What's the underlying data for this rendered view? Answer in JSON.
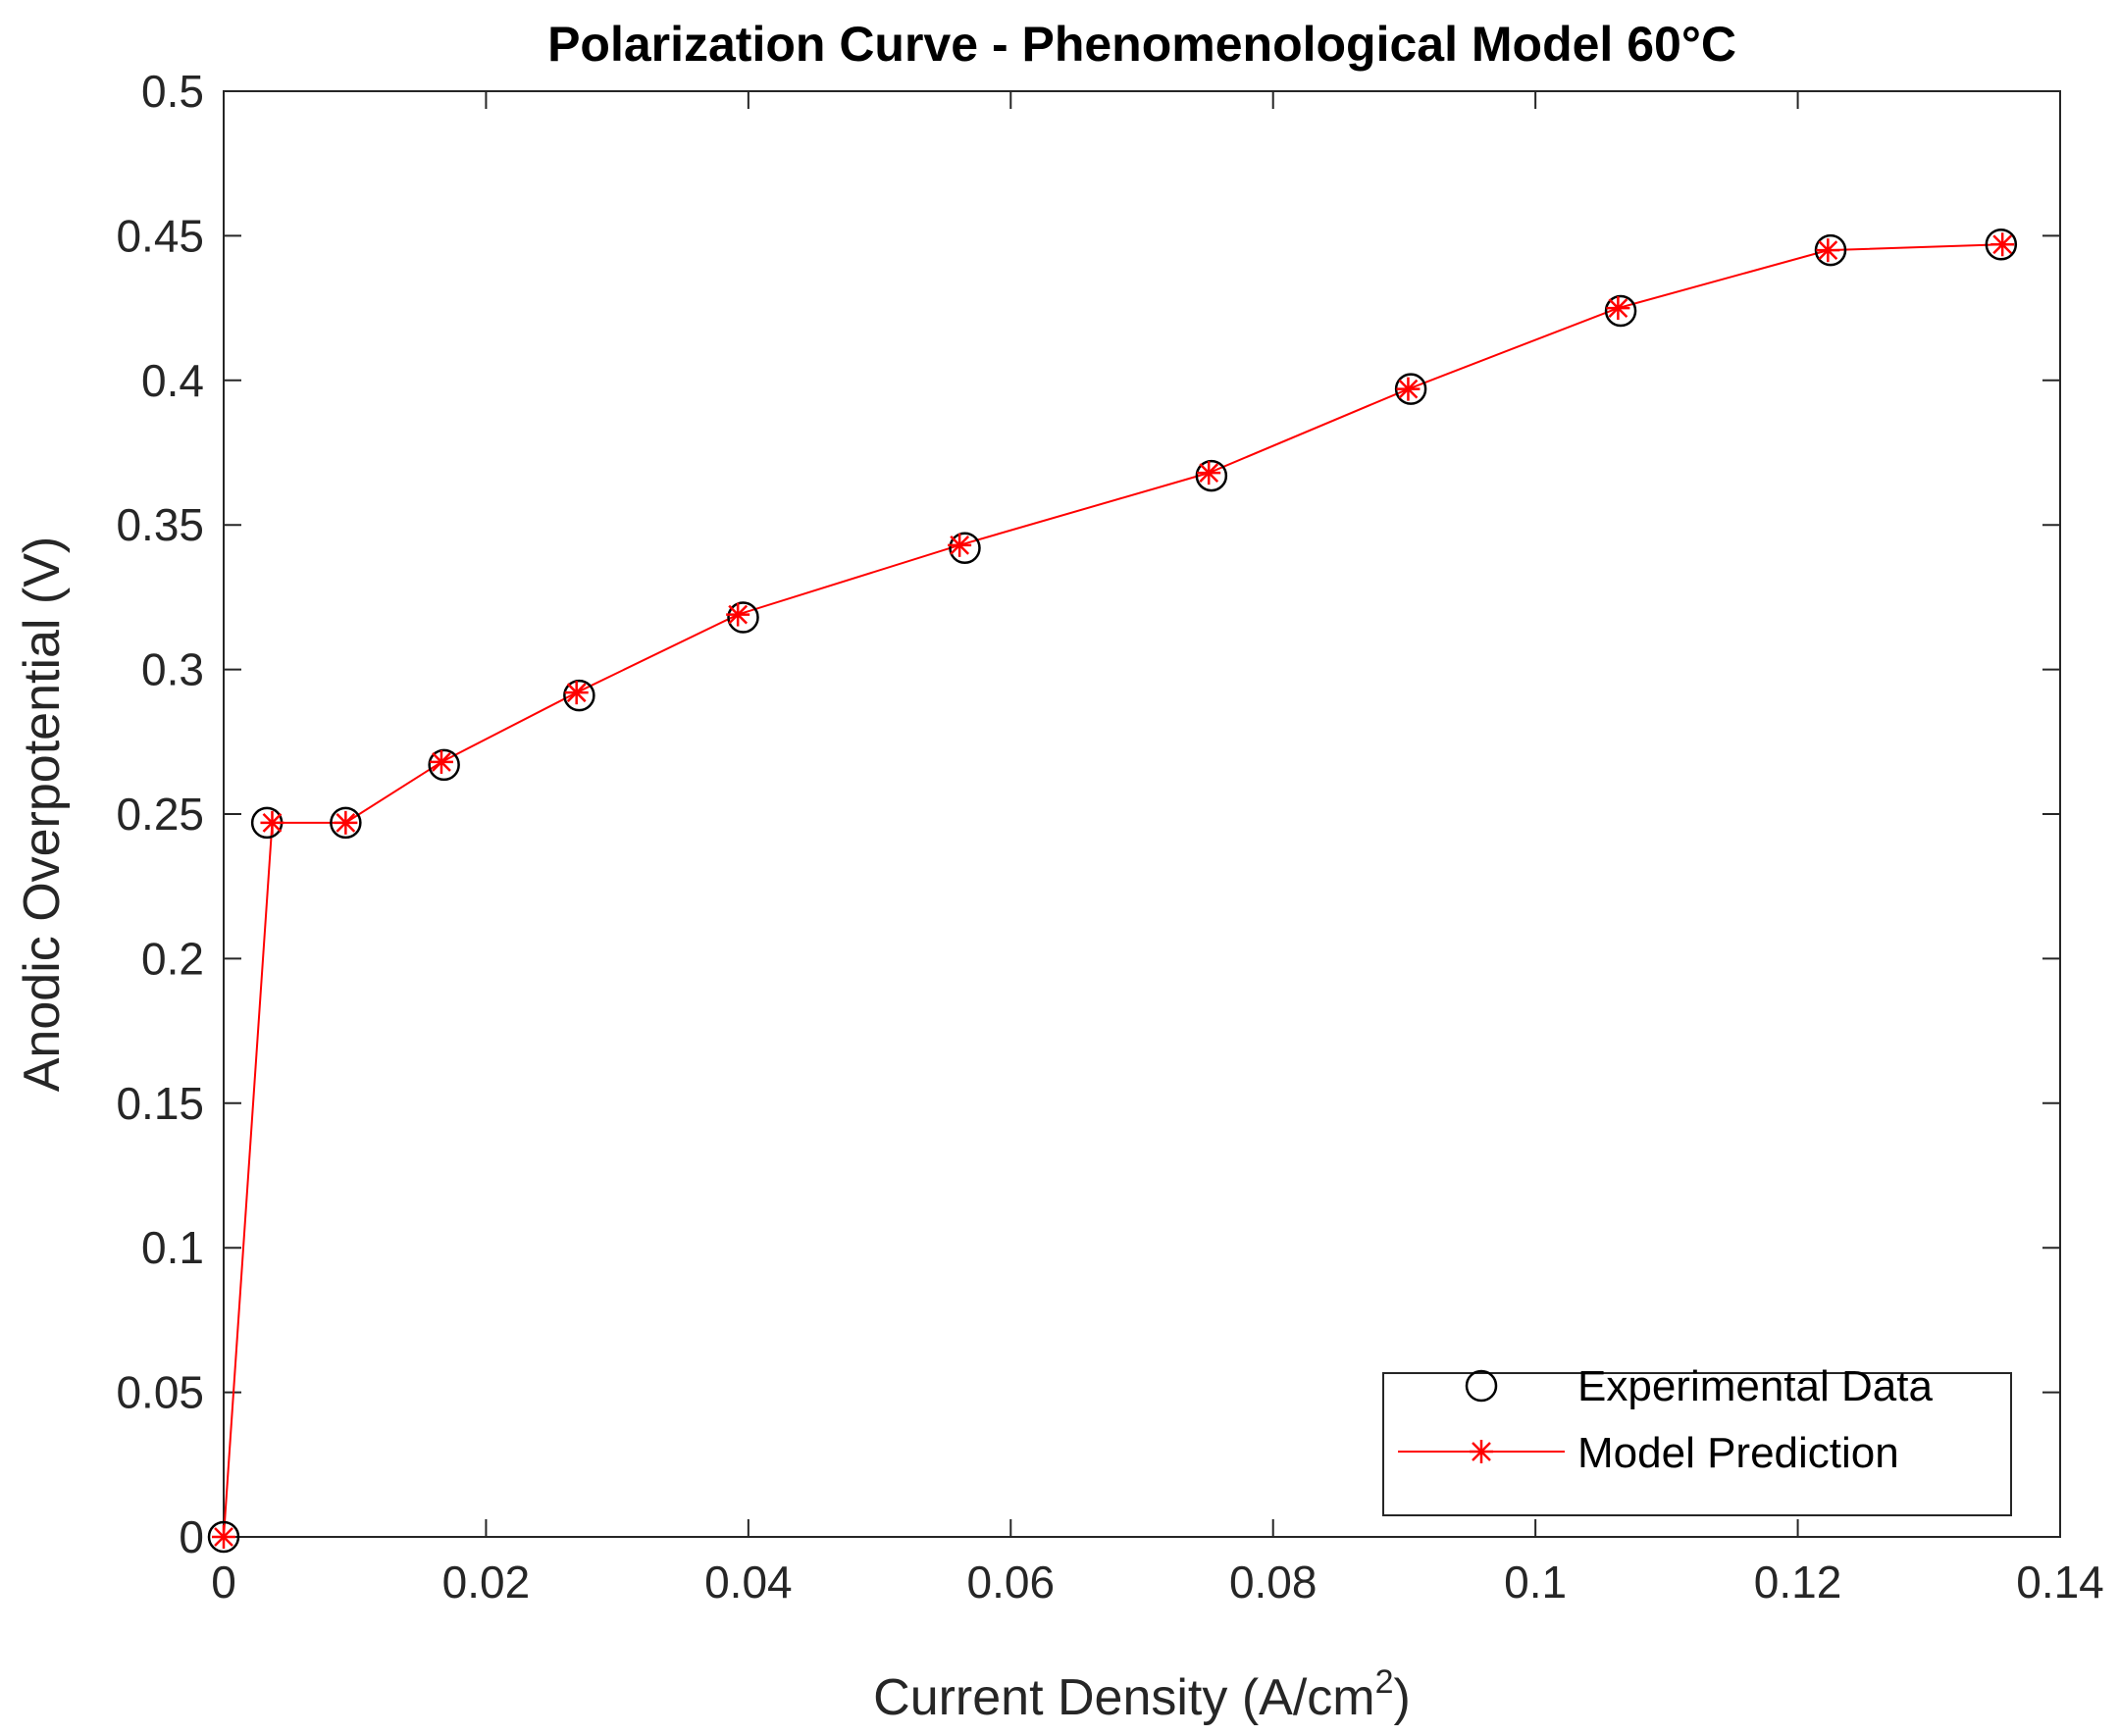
{
  "chart_data": {
    "type": "line",
    "title": "Polarization Curve - Phenomenological Model  60°C",
    "xlabel": "Current Density (A/cm",
    "xlabel_superscript": "2",
    "xlabel_suffix": ")",
    "ylabel": "Anodic Overpotential (V)",
    "xlim": [
      0,
      0.14
    ],
    "ylim": [
      0,
      0.5
    ],
    "xticks": [
      0,
      0.02,
      0.04,
      0.06,
      0.08,
      0.1,
      0.12,
      0.14
    ],
    "xtick_labels": [
      "0",
      "0.02",
      "0.04",
      "0.06",
      "0.08",
      "0.1",
      "0.12",
      "0.14"
    ],
    "yticks": [
      0,
      0.05,
      0.1,
      0.15,
      0.2,
      0.25,
      0.3,
      0.35,
      0.4,
      0.45,
      0.5
    ],
    "ytick_labels": [
      "0",
      "0.05",
      "0.1",
      "0.15",
      "0.2",
      "0.25",
      "0.3",
      "0.35",
      "0.4",
      "0.45",
      "0.5"
    ],
    "grid": false,
    "legend_position": "bottom-right",
    "series": [
      {
        "name": "Experimental Data",
        "style": "markers-circle",
        "color": "#000000",
        "x": [
          0.0,
          0.0033,
          0.0093,
          0.0168,
          0.0271,
          0.0396,
          0.0565,
          0.0753,
          0.0905,
          0.1065,
          0.1225,
          0.1355
        ],
        "y": [
          0.0,
          0.247,
          0.247,
          0.267,
          0.291,
          0.318,
          0.342,
          0.367,
          0.397,
          0.424,
          0.445,
          0.447
        ]
      },
      {
        "name": "Model Prediction",
        "style": "line-asterisk",
        "color": "#ff0000",
        "x": [
          0.0,
          0.0037,
          0.0093,
          0.0166,
          0.0269,
          0.0392,
          0.0561,
          0.0751,
          0.0903,
          0.1063,
          0.1223,
          0.1356
        ],
        "y": [
          0.0,
          0.247,
          0.247,
          0.268,
          0.292,
          0.319,
          0.343,
          0.368,
          0.397,
          0.425,
          0.445,
          0.447
        ]
      }
    ]
  }
}
